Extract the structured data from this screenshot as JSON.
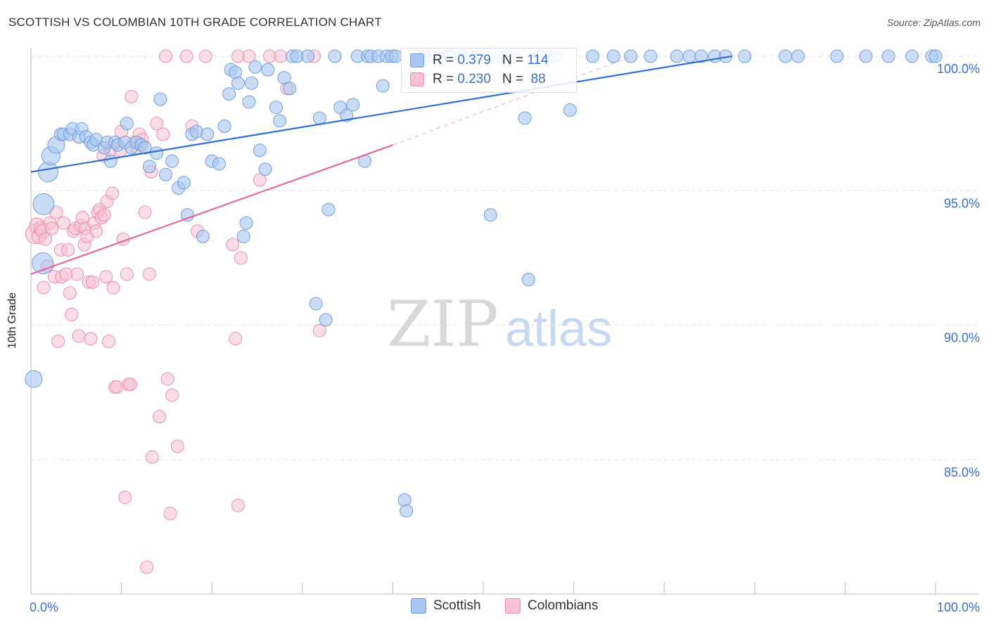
{
  "title": "SCOTTISH VS COLOMBIAN 10TH GRADE CORRELATION CHART",
  "source": "Source: ZipAtlas.com",
  "watermark": {
    "zip": "ZIP",
    "atlas": "atlas"
  },
  "legend": {
    "scottish": {
      "r_label": "R =",
      "r_value": "0.379",
      "n_label": "N =",
      "n_value": "114"
    },
    "colombian": {
      "r_label": "R =",
      "r_value": "0.230",
      "n_label": "N =",
      "n_value": "88"
    }
  },
  "bottom_legend": {
    "scottish": "Scottish",
    "colombian": "Colombians"
  },
  "colors": {
    "scottish_fill": "#a9c6f0",
    "scottish_stroke": "#6f9ee0",
    "scottish_line": "#2d6fd2",
    "colombian_fill": "#f6c1d1",
    "colombian_stroke": "#ec8fae",
    "colombian_line": "#e36a94",
    "axis_text": "#3a6fd8",
    "grid": "#e3e3e3"
  },
  "chart_data": {
    "type": "scatter",
    "title": "SCOTTISH VS COLOMBIAN 10TH GRADE CORRELATION CHART",
    "xlabel": "",
    "ylabel": "10th Grade",
    "xlim": [
      0,
      100
    ],
    "ylim": [
      80.5,
      100.8
    ],
    "x_tick_labels": {
      "left": "0.0%",
      "right": "100.0%"
    },
    "y_ticks": [
      {
        "value": 100,
        "label": "100.0%"
      },
      {
        "value": 95,
        "label": "95.0%"
      },
      {
        "value": 90,
        "label": "90.0%"
      },
      {
        "value": 85,
        "label": "85.0%"
      }
    ],
    "series": [
      {
        "name": "Scottish",
        "r": 0.379,
        "n": 114,
        "trend": {
          "x0": 0,
          "y0": 95.7,
          "x1": 77.5,
          "y1": 100.0
        },
        "points": [
          [
            0.3,
            88.0,
            12
          ],
          [
            1.3,
            92.3,
            15
          ],
          [
            1.4,
            94.5,
            15
          ],
          [
            1.9,
            95.7,
            14
          ],
          [
            2.2,
            96.3,
            13
          ],
          [
            2.8,
            96.7,
            12
          ],
          [
            3.3,
            97.1,
            9
          ],
          [
            3.6,
            97.1,
            9
          ],
          [
            4.3,
            97.1,
            9
          ],
          [
            4.6,
            97.3,
            9
          ],
          [
            5.3,
            97.0,
            9
          ],
          [
            5.6,
            97.3,
            9
          ],
          [
            6.1,
            97.0,
            9
          ],
          [
            6.6,
            96.8,
            9
          ],
          [
            6.9,
            96.7,
            9
          ],
          [
            7.2,
            96.9,
            9
          ],
          [
            8.1,
            96.6,
            9
          ],
          [
            8.4,
            96.8,
            9
          ],
          [
            8.8,
            96.1,
            9
          ],
          [
            9.3,
            96.8,
            9
          ],
          [
            9.6,
            96.7,
            9
          ],
          [
            10.4,
            96.8,
            9
          ],
          [
            10.6,
            97.5,
            9
          ],
          [
            11.1,
            96.6,
            9
          ],
          [
            11.7,
            96.8,
            9
          ],
          [
            12.2,
            96.7,
            9
          ],
          [
            12.6,
            96.6,
            9
          ],
          [
            13.1,
            95.9,
            9
          ],
          [
            13.9,
            96.4,
            9
          ],
          [
            14.3,
            98.4,
            9
          ],
          [
            14.9,
            95.6,
            9
          ],
          [
            15.6,
            96.1,
            9
          ],
          [
            16.3,
            95.1,
            9
          ],
          [
            16.9,
            95.3,
            9
          ],
          [
            17.3,
            94.1,
            9
          ],
          [
            17.8,
            97.1,
            9
          ],
          [
            18.3,
            97.2,
            9
          ],
          [
            19.0,
            93.3,
            9
          ],
          [
            19.5,
            97.1,
            9
          ],
          [
            20.0,
            96.1,
            9
          ],
          [
            20.8,
            96.0,
            9
          ],
          [
            21.4,
            97.4,
            9
          ],
          [
            21.9,
            98.6,
            9
          ],
          [
            22.1,
            99.5,
            9
          ],
          [
            22.6,
            99.4,
            9
          ],
          [
            22.9,
            99.0,
            9
          ],
          [
            23.5,
            93.3,
            9
          ],
          [
            23.8,
            93.8,
            9
          ],
          [
            24.1,
            98.3,
            9
          ],
          [
            24.4,
            99.0,
            9
          ],
          [
            24.8,
            99.6,
            9
          ],
          [
            25.3,
            96.5,
            9
          ],
          [
            25.9,
            95.8,
            9
          ],
          [
            26.2,
            99.5,
            9
          ],
          [
            27.1,
            98.1,
            9
          ],
          [
            27.5,
            97.6,
            9
          ],
          [
            28.0,
            99.2,
            9
          ],
          [
            28.6,
            98.8,
            9
          ],
          [
            28.9,
            100.0,
            9
          ],
          [
            29.4,
            100.0,
            9
          ],
          [
            30.6,
            100.0,
            9
          ],
          [
            31.5,
            90.8,
            9
          ],
          [
            31.9,
            97.7,
            9
          ],
          [
            32.6,
            90.2,
            9
          ],
          [
            32.9,
            94.3,
            9
          ],
          [
            33.6,
            100.0,
            9
          ],
          [
            34.2,
            98.1,
            9
          ],
          [
            34.9,
            97.8,
            9
          ],
          [
            35.6,
            98.2,
            9
          ],
          [
            36.1,
            100.0,
            9
          ],
          [
            36.9,
            96.1,
            9
          ],
          [
            37.2,
            100.0,
            9
          ],
          [
            37.6,
            100.0,
            9
          ],
          [
            38.4,
            100.0,
            9
          ],
          [
            38.9,
            98.9,
            9
          ],
          [
            39.3,
            100.0,
            9
          ],
          [
            39.9,
            100.0,
            9
          ],
          [
            40.3,
            100.0,
            9
          ],
          [
            41.3,
            83.5,
            9
          ],
          [
            41.5,
            83.1,
            9
          ],
          [
            42.6,
            100.0,
            9
          ],
          [
            43.5,
            100.0,
            9
          ],
          [
            44.1,
            100.0,
            9
          ],
          [
            45.3,
            100.0,
            9
          ],
          [
            46.3,
            100.0,
            9
          ],
          [
            47.6,
            100.0,
            9
          ],
          [
            48.5,
            100.0,
            9
          ],
          [
            49.3,
            100.0,
            9
          ],
          [
            50.8,
            94.1,
            9
          ],
          [
            51.9,
            100.0,
            9
          ],
          [
            53.4,
            100.0,
            9
          ],
          [
            54.6,
            97.7,
            9
          ],
          [
            55.0,
            91.7,
            9
          ],
          [
            56.3,
            100.0,
            9
          ],
          [
            57.9,
            100.0,
            9
          ],
          [
            59.6,
            98.0,
            9
          ],
          [
            62.1,
            100.0,
            9
          ],
          [
            64.4,
            100.0,
            9
          ],
          [
            66.3,
            100.0,
            9
          ],
          [
            68.5,
            100.0,
            9
          ],
          [
            71.4,
            100.0,
            9
          ],
          [
            72.8,
            100.0,
            9
          ],
          [
            74.1,
            100.0,
            9
          ],
          [
            75.6,
            100.0,
            9
          ],
          [
            76.8,
            100.0,
            9
          ],
          [
            78.9,
            100.0,
            9
          ],
          [
            83.4,
            100.0,
            9
          ],
          [
            84.8,
            100.0,
            9
          ],
          [
            89.1,
            100.0,
            9
          ],
          [
            92.3,
            100.0,
            9
          ],
          [
            94.8,
            100.0,
            9
          ],
          [
            97.4,
            100.0,
            9
          ],
          [
            99.6,
            100.0,
            9
          ],
          [
            100.0,
            100.0,
            9
          ]
        ]
      },
      {
        "name": "Colombians",
        "r": 0.23,
        "n": 88,
        "trend": {
          "x0": 0,
          "y0": 91.9,
          "x1": 40.0,
          "y1": 96.7
        },
        "trend_dashed_extension": {
          "x0": 40.0,
          "y0": 96.7,
          "x1": 66.5,
          "y1": 100.0
        },
        "points": [
          [
            0.5,
            93.4,
            14
          ],
          [
            0.7,
            93.7,
            11
          ],
          [
            0.9,
            93.3,
            10
          ],
          [
            1.1,
            93.6,
            10
          ],
          [
            1.3,
            93.5,
            10
          ],
          [
            1.4,
            91.4,
            9
          ],
          [
            1.6,
            93.2,
            9
          ],
          [
            1.8,
            92.2,
            9
          ],
          [
            2.1,
            93.8,
            9
          ],
          [
            2.3,
            93.6,
            9
          ],
          [
            2.6,
            91.8,
            9
          ],
          [
            2.8,
            94.2,
            9
          ],
          [
            3.0,
            89.4,
            9
          ],
          [
            3.3,
            92.8,
            9
          ],
          [
            3.4,
            91.8,
            9
          ],
          [
            3.6,
            93.8,
            9
          ],
          [
            3.9,
            91.9,
            9
          ],
          [
            4.1,
            92.8,
            9
          ],
          [
            4.3,
            91.2,
            9
          ],
          [
            4.5,
            90.4,
            9
          ],
          [
            4.7,
            93.5,
            9
          ],
          [
            4.9,
            93.6,
            9
          ],
          [
            5.1,
            91.9,
            9
          ],
          [
            5.3,
            89.6,
            9
          ],
          [
            5.5,
            93.7,
            9
          ],
          [
            5.7,
            94.0,
            9
          ],
          [
            5.9,
            93.0,
            9
          ],
          [
            6.0,
            93.6,
            9
          ],
          [
            6.2,
            93.3,
            9
          ],
          [
            6.4,
            91.6,
            9
          ],
          [
            6.6,
            89.5,
            9
          ],
          [
            6.8,
            91.6,
            9
          ],
          [
            7.0,
            93.8,
            9
          ],
          [
            7.2,
            93.5,
            9
          ],
          [
            7.4,
            94.2,
            9
          ],
          [
            7.6,
            94.3,
            9
          ],
          [
            7.8,
            94.0,
            9
          ],
          [
            8.0,
            96.3,
            9
          ],
          [
            8.1,
            94.1,
            9
          ],
          [
            8.3,
            91.8,
            9
          ],
          [
            8.4,
            94.6,
            9
          ],
          [
            8.6,
            89.4,
            9
          ],
          [
            8.8,
            96.5,
            9
          ],
          [
            9.0,
            94.9,
            9
          ],
          [
            9.1,
            91.4,
            9
          ],
          [
            9.3,
            87.7,
            9
          ],
          [
            9.5,
            87.7,
            9
          ],
          [
            9.9,
            96.5,
            9
          ],
          [
            10.0,
            97.2,
            9
          ],
          [
            10.2,
            93.2,
            9
          ],
          [
            10.4,
            83.6,
            9
          ],
          [
            10.6,
            91.9,
            9
          ],
          [
            10.8,
            87.8,
            9
          ],
          [
            11.0,
            87.8,
            9
          ],
          [
            11.1,
            98.5,
            9
          ],
          [
            11.4,
            96.8,
            9
          ],
          [
            11.7,
            96.6,
            9
          ],
          [
            12.0,
            97.1,
            9
          ],
          [
            12.3,
            96.9,
            9
          ],
          [
            12.6,
            94.2,
            9
          ],
          [
            12.8,
            81.0,
            9
          ],
          [
            13.1,
            91.9,
            9
          ],
          [
            13.3,
            95.7,
            9
          ],
          [
            13.4,
            85.1,
            9
          ],
          [
            13.9,
            97.5,
            9
          ],
          [
            14.2,
            86.6,
            9
          ],
          [
            14.6,
            97.1,
            9
          ],
          [
            14.9,
            100.0,
            9
          ],
          [
            15.1,
            88.0,
            9
          ],
          [
            15.4,
            83.0,
            9
          ],
          [
            15.6,
            87.4,
            9
          ],
          [
            16.2,
            85.5,
            9
          ],
          [
            17.2,
            100.0,
            9
          ],
          [
            17.8,
            97.4,
            9
          ],
          [
            18.4,
            93.5,
            9
          ],
          [
            19.3,
            100.0,
            9
          ],
          [
            22.3,
            93.0,
            9
          ],
          [
            22.6,
            89.5,
            9
          ],
          [
            22.9,
            100.0,
            9
          ],
          [
            22.9,
            83.3,
            9
          ],
          [
            23.2,
            92.5,
            9
          ],
          [
            24.1,
            100.0,
            9
          ],
          [
            25.3,
            95.4,
            9
          ],
          [
            26.4,
            100.0,
            9
          ],
          [
            27.6,
            100.0,
            9
          ],
          [
            28.3,
            98.8,
            9
          ],
          [
            31.3,
            100.0,
            9
          ],
          [
            31.9,
            89.8,
            9
          ]
        ]
      }
    ]
  }
}
